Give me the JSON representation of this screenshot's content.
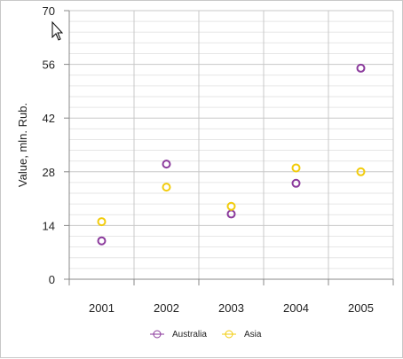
{
  "chart_data": {
    "type": "scatter",
    "title": "",
    "xlabel": "",
    "ylabel": "Value, mln. Rub.",
    "categories": [
      "2001",
      "2002",
      "2003",
      "2004",
      "2005"
    ],
    "ylim": [
      0,
      70
    ],
    "yticks": [
      {
        "value": 0,
        "label": "0"
      },
      {
        "value": 14,
        "label": "14"
      },
      {
        "value": 28,
        "label": "28"
      },
      {
        "value": 42,
        "label": "42"
      },
      {
        "value": 56,
        "label": "56"
      },
      {
        "value": 70,
        "label": "70"
      }
    ],
    "highlighted_tick": {
      "value": 70,
      "color": "#ff0000"
    },
    "grid": true,
    "legend_position": "bottom",
    "series": [
      {
        "name": "Australia",
        "color": "#8b3a9c",
        "values": [
          10,
          30,
          17,
          25,
          55
        ]
      },
      {
        "name": "Asia",
        "color": "#f2cc0c",
        "values": [
          15,
          24,
          19,
          29,
          28
        ]
      }
    ]
  }
}
